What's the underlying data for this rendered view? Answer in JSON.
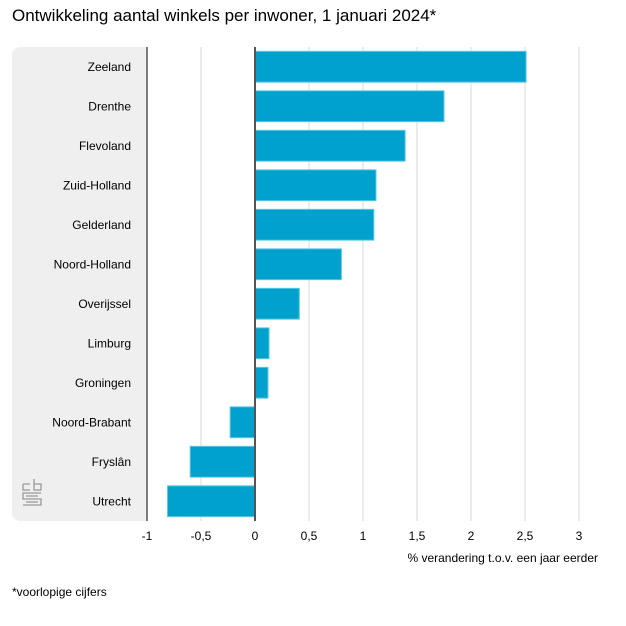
{
  "title": "Ontwikkeling aantal winkels per inwoner, 1 januari 2024*",
  "footnote": "*voorlopige cijfers",
  "logo": "cbs",
  "colors": {
    "bar": "#00a1cd",
    "panel": "#efefef",
    "grid": "#d9d9d9",
    "axis": "#555555"
  },
  "chart_data": {
    "type": "bar",
    "orientation": "horizontal",
    "title": "Ontwikkeling aantal winkels per inwoner, 1 januari 2024*",
    "xlabel": "% verandering t.o.v. een jaar eerder",
    "ylabel": "",
    "xlim": [
      -1,
      3
    ],
    "grid": true,
    "xticks": [
      -1,
      -0.5,
      0,
      0.5,
      1,
      1.5,
      2,
      2.5,
      3
    ],
    "xtick_labels": [
      "-1",
      "-0,5",
      "0",
      "0,5",
      "1",
      "1,5",
      "2",
      "2,5",
      "3"
    ],
    "categories": [
      "Zeeland",
      "Drenthe",
      "Flevoland",
      "Zuid-Holland",
      "Gelderland",
      "Noord-Holland",
      "Overijssel",
      "Limburg",
      "Groningen",
      "Noord-Brabant",
      "Fryslân",
      "Utrecht"
    ],
    "values": [
      2.51,
      1.75,
      1.39,
      1.12,
      1.1,
      0.8,
      0.41,
      0.13,
      0.12,
      -0.23,
      -0.6,
      -0.81
    ]
  }
}
